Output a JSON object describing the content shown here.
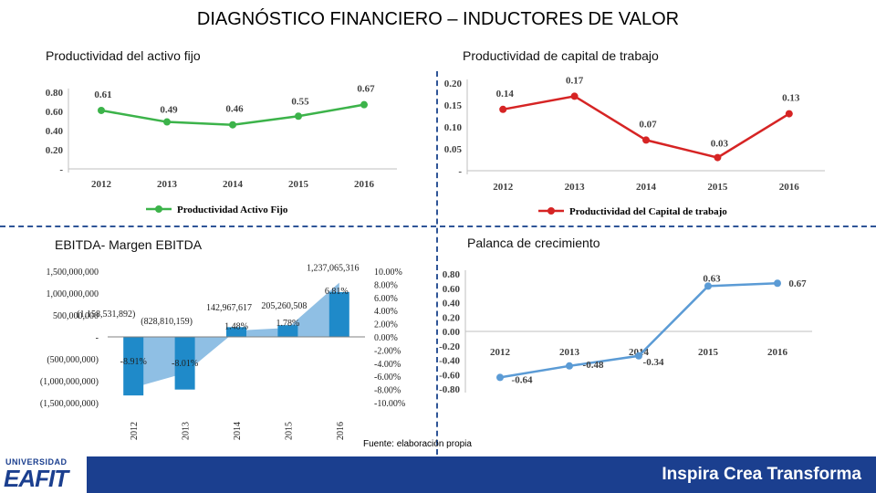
{
  "title": "DIAGNÓSTICO FINANCIERO – INDUCTORES DE VALOR",
  "source": "Fuente: elaboración propia",
  "slogan": "Inspira Crea Transforma",
  "logo": {
    "top": "UNIVERSIDAD",
    "main": "EAFIT"
  },
  "colors": {
    "green": "#3cb34a",
    "red": "#d62424",
    "blue_bar": "#1f8ac9",
    "blue_area": "#8fbfe4",
    "blue_line": "#5b9bd5",
    "brand_blue": "#1b3f8f"
  },
  "chart_data": [
    {
      "id": "paf",
      "panel_title": "Productividad del activo fijo",
      "type": "line",
      "categories": [
        "2012",
        "2013",
        "2014",
        "2015",
        "2016"
      ],
      "series": [
        {
          "name": "Productividad Activo Fijo",
          "values": [
            0.61,
            0.49,
            0.46,
            0.55,
            0.67
          ]
        }
      ],
      "data_labels": [
        "0.61",
        "0.49",
        "0.46",
        "0.55",
        "0.67"
      ],
      "y_ticks": [
        "0.80",
        "0.60",
        "0.40",
        "0.20",
        "-"
      ],
      "ylim": [
        0,
        0.8
      ],
      "legend": "Productividad Activo Fijo",
      "legend_position": "bottom"
    },
    {
      "id": "pkt",
      "panel_title": "Productividad de capital de trabajo",
      "type": "line",
      "categories": [
        "2012",
        "2013",
        "2014",
        "2015",
        "2016"
      ],
      "series": [
        {
          "name": "Productividad del Capital de trabajo",
          "values": [
            0.14,
            0.17,
            0.07,
            0.03,
            0.13
          ]
        }
      ],
      "data_labels": [
        "0.14",
        "0.17",
        "0.07",
        "0.03",
        "0.13"
      ],
      "y_ticks": [
        "0.20",
        "0.15",
        "0.10",
        "0.05",
        "-"
      ],
      "ylim": [
        0,
        0.2
      ],
      "legend": "Productividad del Capital de trabajo",
      "legend_position": "bottom"
    },
    {
      "id": "ebitda",
      "panel_title": "EBITDA- Margen EBITDA",
      "type": "bar",
      "categories": [
        "2012",
        "2013",
        "2014",
        "2015",
        "2016"
      ],
      "series": [
        {
          "name": "EBITDA",
          "values": [
            -1158531892,
            -828810159,
            142967617,
            205260508,
            1237065316
          ]
        },
        {
          "name": "Margen EBITDA (%)",
          "values": [
            -8.91,
            -8.01,
            1.48,
            1.78,
            6.81
          ]
        }
      ],
      "ebitda_labels": [
        "(1,158,531,892)",
        "(828,810,159)",
        "142,967,617",
        "205,260,508",
        "1,237,065,316"
      ],
      "margin_labels": [
        "-8.91%",
        "-8.01%",
        "1.48%",
        "1.78%",
        "6.81%"
      ],
      "y_ticks_left": [
        "1,500,000,000",
        "1,000,000,000",
        "500,000,000",
        "-",
        "(500,000,000)",
        "(1,000,000,000)",
        "(1,500,000,000)"
      ],
      "y_ticks_right": [
        "10.00%",
        "8.00%",
        "6.00%",
        "4.00%",
        "2.00%",
        "0.00%",
        "-2.00%",
        "-4.00%",
        "-6.00%",
        "-8.00%",
        "-10.00%"
      ],
      "ylim_left": [
        -1500000000,
        1500000000
      ],
      "ylim_right": [
        -10,
        10
      ]
    },
    {
      "id": "palanca",
      "panel_title": "Palanca de crecimiento",
      "type": "line",
      "categories": [
        "2012",
        "2013",
        "2014",
        "2015",
        "2016"
      ],
      "series": [
        {
          "name": "Palanca de crecimiento",
          "values": [
            -0.64,
            -0.48,
            -0.34,
            0.63,
            0.67
          ]
        }
      ],
      "data_labels": [
        "-0.64",
        "-0.48",
        "-0.34",
        "0.63",
        "0.67"
      ],
      "y_ticks": [
        "0.80",
        "0.60",
        "0.40",
        "0.20",
        "0.00",
        "-0.20",
        "-0.40",
        "-0.60",
        "-0.80"
      ],
      "ylim": [
        -0.8,
        0.8
      ]
    }
  ]
}
